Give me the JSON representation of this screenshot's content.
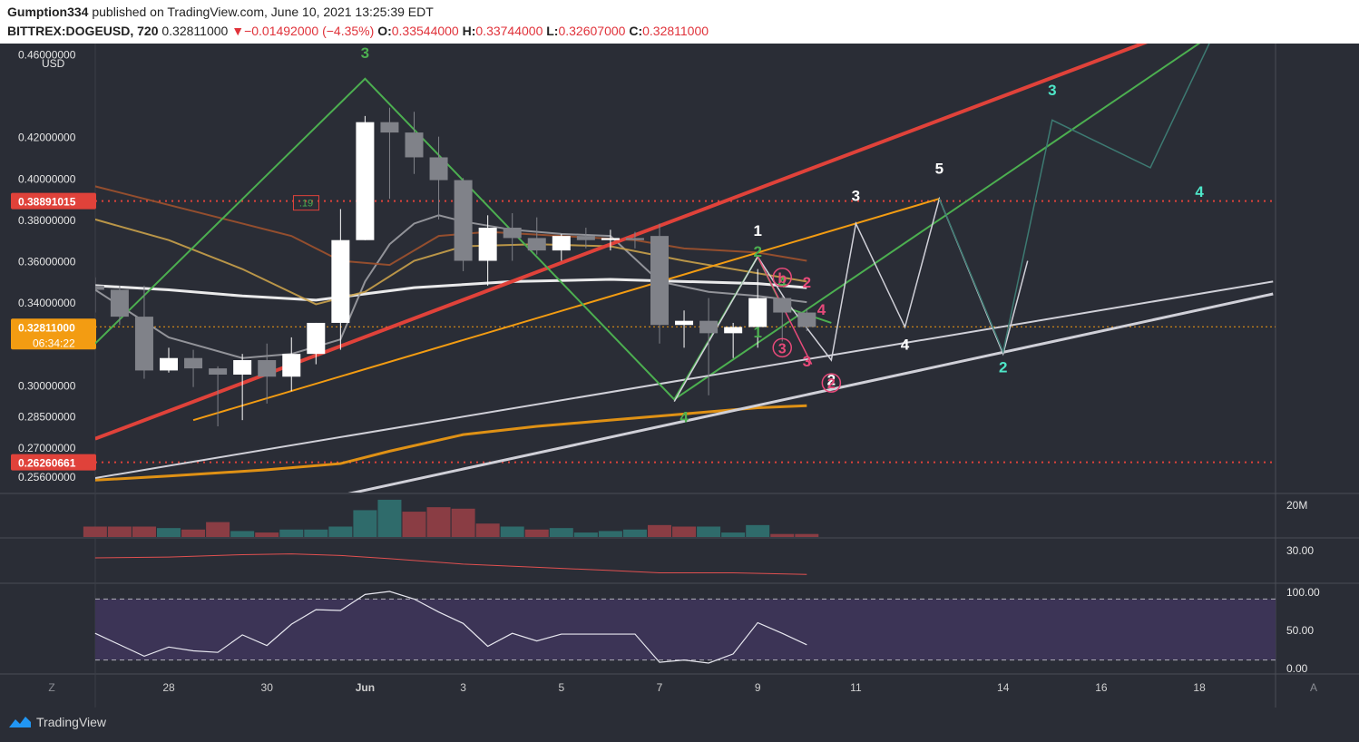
{
  "header": {
    "author": "Gumption334",
    "published_text": "published on TradingView.com, June 10, 2021 13:25:39 EDT",
    "symbol": "BITTREX:DOGEUSD, 720",
    "last": "0.32811000",
    "change_arrow": "▼",
    "change": "−0.01492000 (−4.35%)",
    "open_label": "O:",
    "open": "0.33544000",
    "high_label": "H:",
    "high": "0.33744000",
    "low_label": "L:",
    "low": "0.32607000",
    "close_label": "C:",
    "close": "0.32811000"
  },
  "footer": {
    "brand": "TradingView",
    "brand_icon": "tradingview-cloud-icon"
  },
  "colors": {
    "background": "#2a2d36",
    "up": "#ffffff",
    "down": "#808289",
    "red_channel": "#e0423a",
    "orange": "#f39c12",
    "green": "#4caf50",
    "teal": "#4ee6c8",
    "pink": "#e84a7a"
  },
  "chart_data": {
    "type": "candlestick",
    "currency_label": "USD",
    "ylim": [
      0.248,
      0.465
    ],
    "y_ticks": [
      "0.46000000",
      "0.42000000",
      "0.40000000",
      "0.38000000",
      "0.36000000",
      "0.34000000",
      "0.30000000",
      "0.28500000",
      "0.27000000",
      "0.25600000"
    ],
    "x_ticks": [
      {
        "label": "28",
        "day": 28.0
      },
      {
        "label": "30",
        "day": 30.0
      },
      {
        "label": "Jun",
        "day": 32.0
      },
      {
        "label": "3",
        "day": 34.0
      },
      {
        "label": "5",
        "day": 36.0
      },
      {
        "label": "7",
        "day": 38.0
      },
      {
        "label": "9",
        "day": 40.0
      },
      {
        "label": "11",
        "day": 42.0
      },
      {
        "label": "14",
        "day": 45.0
      },
      {
        "label": "16",
        "day": 47.0
      },
      {
        "label": "18",
        "day": 49.0
      }
    ],
    "corner_labels": {
      "left": "Z",
      "right": "A"
    },
    "price_labels": [
      {
        "value": 0.38891015,
        "text": "0.38891015",
        "color": "#e0423a"
      },
      {
        "value": 0.32811,
        "text": "0.32811000",
        "sub": "06:34:22",
        "color": "#f39c12"
      },
      {
        "value": 0.26260661,
        "text": "0.26260661",
        "color": "#e0423a"
      }
    ],
    "candles": [
      {
        "day": 26.5,
        "o": 0.348,
        "h": 0.352,
        "l": 0.335,
        "c": 0.346
      },
      {
        "day": 27.0,
        "o": 0.346,
        "h": 0.348,
        "l": 0.329,
        "c": 0.333
      },
      {
        "day": 27.5,
        "o": 0.333,
        "h": 0.348,
        "l": 0.303,
        "c": 0.307
      },
      {
        "day": 28.0,
        "o": 0.307,
        "h": 0.318,
        "l": 0.306,
        "c": 0.313
      },
      {
        "day": 28.5,
        "o": 0.313,
        "h": 0.317,
        "l": 0.299,
        "c": 0.308
      },
      {
        "day": 29.0,
        "o": 0.308,
        "h": 0.309,
        "l": 0.28,
        "c": 0.305
      },
      {
        "day": 29.5,
        "o": 0.305,
        "h": 0.315,
        "l": 0.283,
        "c": 0.312
      },
      {
        "day": 30.0,
        "o": 0.312,
        "h": 0.32,
        "l": 0.291,
        "c": 0.304
      },
      {
        "day": 30.5,
        "o": 0.304,
        "h": 0.323,
        "l": 0.297,
        "c": 0.315
      },
      {
        "day": 31.0,
        "o": 0.315,
        "h": 0.33,
        "l": 0.31,
        "c": 0.33
      },
      {
        "day": 31.5,
        "o": 0.33,
        "h": 0.385,
        "l": 0.317,
        "c": 0.37
      },
      {
        "day": 32.0,
        "o": 0.37,
        "h": 0.43,
        "l": 0.37,
        "c": 0.427
      },
      {
        "day": 32.5,
        "o": 0.427,
        "h": 0.434,
        "l": 0.39,
        "c": 0.422
      },
      {
        "day": 33.0,
        "o": 0.422,
        "h": 0.432,
        "l": 0.402,
        "c": 0.41
      },
      {
        "day": 33.5,
        "o": 0.41,
        "h": 0.42,
        "l": 0.38,
        "c": 0.399
      },
      {
        "day": 34.0,
        "o": 0.399,
        "h": 0.4,
        "l": 0.355,
        "c": 0.36
      },
      {
        "day": 34.5,
        "o": 0.36,
        "h": 0.382,
        "l": 0.348,
        "c": 0.376
      },
      {
        "day": 35.0,
        "o": 0.376,
        "h": 0.383,
        "l": 0.36,
        "c": 0.371
      },
      {
        "day": 35.5,
        "o": 0.371,
        "h": 0.381,
        "l": 0.363,
        "c": 0.365
      },
      {
        "day": 36.0,
        "o": 0.365,
        "h": 0.373,
        "l": 0.36,
        "c": 0.372
      },
      {
        "day": 36.5,
        "o": 0.372,
        "h": 0.376,
        "l": 0.366,
        "c": 0.37
      },
      {
        "day": 37.0,
        "o": 0.37,
        "h": 0.375,
        "l": 0.365,
        "c": 0.371
      },
      {
        "day": 37.5,
        "o": 0.371,
        "h": 0.374,
        "l": 0.366,
        "c": 0.37
      },
      {
        "day": 38.0,
        "o": 0.372,
        "h": 0.378,
        "l": 0.32,
        "c": 0.329
      },
      {
        "day": 38.5,
        "o": 0.329,
        "h": 0.336,
        "l": 0.318,
        "c": 0.331
      },
      {
        "day": 39.0,
        "o": 0.331,
        "h": 0.342,
        "l": 0.295,
        "c": 0.325
      },
      {
        "day": 39.5,
        "o": 0.325,
        "h": 0.33,
        "l": 0.313,
        "c": 0.328
      },
      {
        "day": 40.0,
        "o": 0.328,
        "h": 0.356,
        "l": 0.318,
        "c": 0.342
      },
      {
        "day": 40.5,
        "o": 0.342,
        "h": 0.343,
        "l": 0.321,
        "c": 0.335
      },
      {
        "day": 41.0,
        "o": 0.335,
        "h": 0.337,
        "l": 0.326,
        "c": 0.328
      }
    ],
    "volume": {
      "axis_label": "20M",
      "values": [
        [
          26.5,
          7,
          "d"
        ],
        [
          27.0,
          7,
          "d"
        ],
        [
          27.5,
          7,
          "d"
        ],
        [
          28.0,
          6,
          "u"
        ],
        [
          28.5,
          5,
          "d"
        ],
        [
          29.0,
          10,
          "d"
        ],
        [
          29.5,
          4,
          "u"
        ],
        [
          30.0,
          3,
          "d"
        ],
        [
          30.5,
          5,
          "u"
        ],
        [
          31.0,
          5,
          "u"
        ],
        [
          31.5,
          7,
          "u"
        ],
        [
          32.0,
          18,
          "u"
        ],
        [
          32.5,
          25,
          "u"
        ],
        [
          33.0,
          17,
          "d"
        ],
        [
          33.5,
          20,
          "d"
        ],
        [
          34.0,
          19,
          "d"
        ],
        [
          34.5,
          9,
          "d"
        ],
        [
          35.0,
          7,
          "u"
        ],
        [
          35.5,
          5,
          "d"
        ],
        [
          36.0,
          6,
          "u"
        ],
        [
          36.5,
          3,
          "u"
        ],
        [
          37.0,
          4,
          "u"
        ],
        [
          37.5,
          5,
          "u"
        ],
        [
          38.0,
          8,
          "d"
        ],
        [
          38.5,
          7,
          "d"
        ],
        [
          39.0,
          7,
          "u"
        ],
        [
          39.5,
          3,
          "u"
        ],
        [
          40.0,
          8,
          "u"
        ],
        [
          40.5,
          2,
          "d"
        ],
        [
          41.0,
          2,
          "d"
        ]
      ],
      "ylim": [
        0,
        28
      ]
    },
    "indicator_1": {
      "axis_label": "30.00",
      "ylim": [
        0,
        55
      ],
      "points": [
        [
          26.5,
          31
        ],
        [
          28.0,
          32
        ],
        [
          29.5,
          35
        ],
        [
          30.5,
          36
        ],
        [
          31.5,
          34
        ],
        [
          32.5,
          30
        ],
        [
          34.0,
          23
        ],
        [
          35.5,
          19
        ],
        [
          37.0,
          15
        ],
        [
          38.0,
          12
        ],
        [
          39.5,
          12
        ],
        [
          41.0,
          10
        ]
      ]
    },
    "rsi": {
      "axis_labels": [
        "100.00",
        "50.00",
        "0.00"
      ],
      "ylim": [
        0,
        100
      ],
      "band": [
        10,
        90
      ],
      "points": [
        [
          26.5,
          45
        ],
        [
          27.5,
          15
        ],
        [
          28.0,
          27
        ],
        [
          28.5,
          22
        ],
        [
          29.0,
          20
        ],
        [
          29.5,
          43
        ],
        [
          30.0,
          29
        ],
        [
          30.5,
          57
        ],
        [
          31.0,
          76
        ],
        [
          31.5,
          75
        ],
        [
          32.0,
          96
        ],
        [
          32.5,
          100
        ],
        [
          33.0,
          90
        ],
        [
          33.5,
          73
        ],
        [
          34.0,
          58
        ],
        [
          34.5,
          28
        ],
        [
          35.0,
          45
        ],
        [
          35.5,
          35
        ],
        [
          36.0,
          44
        ],
        [
          36.5,
          44
        ],
        [
          37.0,
          44
        ],
        [
          37.5,
          44
        ],
        [
          38.0,
          7
        ],
        [
          38.5,
          10
        ],
        [
          39.0,
          6
        ],
        [
          39.5,
          18
        ],
        [
          40.0,
          59
        ],
        [
          40.5,
          45
        ],
        [
          41.0,
          30
        ]
      ]
    },
    "moving_averages": [
      {
        "color": "#f39c12",
        "width": 3,
        "points": [
          [
            26.5,
            0.254
          ],
          [
            28.0,
            0.256
          ],
          [
            30.0,
            0.259
          ],
          [
            31.5,
            0.262
          ],
          [
            32.5,
            0.268
          ],
          [
            34.0,
            0.276
          ],
          [
            35.5,
            0.28
          ],
          [
            37.0,
            0.283
          ],
          [
            38.5,
            0.286
          ],
          [
            40.0,
            0.289
          ],
          [
            41.0,
            0.29
          ]
        ]
      },
      {
        "color": "#ffffff",
        "width": 3,
        "points": [
          [
            26.5,
            0.348
          ],
          [
            28.0,
            0.346
          ],
          [
            29.5,
            0.343
          ],
          [
            31.0,
            0.341
          ],
          [
            32.0,
            0.344
          ],
          [
            33.0,
            0.347
          ],
          [
            35.0,
            0.35
          ],
          [
            37.0,
            0.351
          ],
          [
            38.5,
            0.35
          ],
          [
            40.0,
            0.349
          ],
          [
            41.0,
            0.347
          ]
        ]
      },
      {
        "color": "#9d9ea4",
        "width": 2,
        "points": [
          [
            26.5,
            0.346
          ],
          [
            28.0,
            0.323
          ],
          [
            29.5,
            0.313
          ],
          [
            30.5,
            0.315
          ],
          [
            31.5,
            0.322
          ],
          [
            32.0,
            0.35
          ],
          [
            32.5,
            0.368
          ],
          [
            33.0,
            0.378
          ],
          [
            33.5,
            0.382
          ],
          [
            34.0,
            0.379
          ],
          [
            35.0,
            0.375
          ],
          [
            36.0,
            0.373
          ],
          [
            37.0,
            0.372
          ],
          [
            38.0,
            0.35
          ],
          [
            39.0,
            0.345
          ],
          [
            40.0,
            0.343
          ],
          [
            41.0,
            0.34
          ]
        ]
      },
      {
        "color": "#a0522d",
        "width": 2,
        "points": [
          [
            26.5,
            0.396
          ],
          [
            28.0,
            0.387
          ],
          [
            29.5,
            0.378
          ],
          [
            30.5,
            0.372
          ],
          [
            31.5,
            0.36
          ],
          [
            32.5,
            0.358
          ],
          [
            33.5,
            0.372
          ],
          [
            34.5,
            0.374
          ],
          [
            36.0,
            0.372
          ],
          [
            37.5,
            0.37
          ],
          [
            38.5,
            0.366
          ],
          [
            40.0,
            0.364
          ],
          [
            41.0,
            0.36
          ]
        ]
      },
      {
        "color": "#c9a14a",
        "width": 2,
        "points": [
          [
            26.5,
            0.38
          ],
          [
            28.0,
            0.37
          ],
          [
            29.5,
            0.356
          ],
          [
            31.0,
            0.339
          ],
          [
            32.0,
            0.345
          ],
          [
            33.0,
            0.36
          ],
          [
            34.0,
            0.367
          ],
          [
            35.5,
            0.368
          ],
          [
            37.0,
            0.367
          ],
          [
            38.5,
            0.36
          ],
          [
            40.0,
            0.354
          ],
          [
            41.0,
            0.35
          ]
        ]
      }
    ],
    "trend_lines": [
      {
        "color": "#e0423a",
        "width": 4,
        "from": [
          26.5,
          0.274
        ],
        "to": [
          48.4,
          0.47
        ]
      },
      {
        "color": "#f39c12",
        "width": 2,
        "from": [
          28.5,
          0.283
        ],
        "to": [
          43.7,
          0.39
        ]
      },
      {
        "color": "#4caf50",
        "width": 2,
        "from": [
          38.3,
          0.293
        ],
        "to": [
          49.3,
          0.47
        ]
      },
      {
        "color": "#d0d0d8",
        "width": 2,
        "from": [
          26.5,
          0.255
        ],
        "to": [
          50.5,
          0.35
        ]
      },
      {
        "color": "#d0d0d8",
        "width": 3,
        "from": [
          31.0,
          0.244
        ],
        "to": [
          50.5,
          0.344
        ]
      }
    ],
    "wave_paths": [
      {
        "color": "#4caf50",
        "width": 2,
        "points": [
          [
            26.5,
            0.32
          ],
          [
            32.0,
            0.448
          ],
          [
            38.3,
            0.293
          ],
          [
            40.0,
            0.362
          ],
          [
            40.5,
            0.338
          ],
          [
            41.5,
            0.33
          ]
        ]
      },
      {
        "color": "#d0d0d8",
        "width": 1.5,
        "points": [
          [
            38.3,
            0.292
          ],
          [
            40.0,
            0.362
          ],
          [
            40.6,
            0.34
          ],
          [
            41.5,
            0.312
          ],
          [
            42.0,
            0.378
          ],
          [
            43.0,
            0.328
          ],
          [
            43.7,
            0.39
          ],
          [
            45.0,
            0.315
          ],
          [
            45.5,
            0.36
          ]
        ]
      },
      {
        "color": "#3d7a72",
        "width": 1.5,
        "points": [
          [
            43.7,
            0.39
          ],
          [
            45.0,
            0.316
          ],
          [
            46.0,
            0.428
          ],
          [
            48.0,
            0.405
          ],
          [
            49.3,
            0.47
          ]
        ]
      },
      {
        "color": "#e84a7a",
        "width": 1.5,
        "points": [
          [
            40.0,
            0.362
          ],
          [
            41.1,
            0.31
          ]
        ]
      }
    ],
    "wave_labels": [
      {
        "day": 32.0,
        "price": 0.458,
        "text": "3",
        "color": "#4caf50"
      },
      {
        "day": 38.5,
        "price": 0.282,
        "text": "4",
        "color": "#4caf50"
      },
      {
        "day": 40.0,
        "price": 0.323,
        "text": "1",
        "color": "#4caf50"
      },
      {
        "day": 40.0,
        "price": 0.362,
        "text": "2",
        "color": "#4caf50"
      },
      {
        "day": 40.5,
        "price": 0.347,
        "text": "4",
        "color": "#4caf50"
      },
      {
        "day": 40.0,
        "price": 0.372,
        "text": "1",
        "color": "#ffffff"
      },
      {
        "day": 42.0,
        "price": 0.389,
        "text": "3",
        "color": "#ffffff"
      },
      {
        "day": 43.7,
        "price": 0.402,
        "text": "5",
        "color": "#ffffff"
      },
      {
        "day": 43.0,
        "price": 0.317,
        "text": "4",
        "color": "#ffffff"
      },
      {
        "day": 46.0,
        "price": 0.44,
        "text": "3",
        "color": "#4ee6c8"
      },
      {
        "day": 45.0,
        "price": 0.306,
        "text": "2",
        "color": "#4ee6c8"
      },
      {
        "day": 49.0,
        "price": 0.391,
        "text": "4",
        "color": "#4ee6c8"
      },
      {
        "day": 41.0,
        "price": 0.347,
        "text": "2",
        "color": "#e84a7a"
      },
      {
        "day": 41.3,
        "price": 0.334,
        "text": "4",
        "color": "#e84a7a"
      },
      {
        "day": 41.0,
        "price": 0.309,
        "text": "3",
        "color": "#e84a7a"
      },
      {
        "day": 41.5,
        "price": 0.3,
        "text": "2",
        "color": "#ffffff"
      }
    ],
    "circle_labels": [
      {
        "day": 40.5,
        "price": 0.352,
        "text": "b",
        "color": "#e84a7a"
      },
      {
        "day": 40.5,
        "price": 0.318,
        "text": "3",
        "color": "#e84a7a"
      },
      {
        "day": 41.5,
        "price": 0.301,
        "text": "2",
        "color": "#e84a7a"
      }
    ],
    "box_label": {
      "day": 30.8,
      "price": 0.388,
      "text": ".19"
    }
  }
}
